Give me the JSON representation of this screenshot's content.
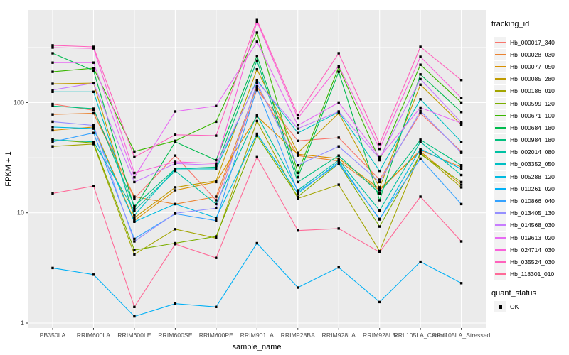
{
  "chart_data": {
    "type": "line",
    "title": "",
    "xlabel": "sample_name",
    "ylabel": "FPKM + 1",
    "y_scale": "log10",
    "y_ticks": [
      1,
      10,
      100
    ],
    "y_minor_ticks": [
      3.1623,
      31.623,
      316.23
    ],
    "ylim": [
      0.93,
      690
    ],
    "grid": true,
    "legend_position": "right",
    "legend_title": "tracking_id",
    "point_legend": {
      "title": "quant_status",
      "label": "OK",
      "marker": "black-square"
    },
    "style": {
      "panel_bg": "#EBEBEB",
      "grid_color": "#FFFFFF",
      "tick_label_color": "#4D4D4D",
      "tick_mark_color": "#333333",
      "legend_key_bg": "#F2F2F2",
      "point_color": "#000000"
    },
    "categories": [
      "PB350LA",
      "RRIM600LA",
      "RRIM600LE",
      "RRIM600SE",
      "RRIM600PE",
      "RRIM901LA",
      "RRIM928BA",
      "RRIM928LA",
      "RRIM928LB",
      "RRII105LA_Control",
      "RRII105LA_Stressed"
    ],
    "series": [
      {
        "name": "Hb_000017_340",
        "color": "#F8766D",
        "values": [
          97,
          85,
          13.5,
          33,
          13,
          130,
          45,
          48,
          20,
          80,
          36
        ]
      },
      {
        "name": "Hb_000028_030",
        "color": "#EA8331",
        "values": [
          78,
          80,
          14,
          12,
          14,
          140,
          33,
          29.5,
          16,
          37,
          26
        ]
      },
      {
        "name": "Hb_000077_050",
        "color": "#D89000",
        "values": [
          56,
          60,
          8.5,
          16,
          19,
          75,
          34,
          31,
          16.5,
          36,
          18
        ]
      },
      {
        "name": "Hb_000085_280",
        "color": "#C09B00",
        "values": [
          148,
          150,
          9,
          17,
          19.5,
          200,
          35,
          80,
          17,
          145,
          63
        ]
      },
      {
        "name": "Hb_000186_010",
        "color": "#A3A500",
        "values": [
          40,
          42,
          4.2,
          7.1,
          5.9,
          68,
          13.5,
          18,
          4.5,
          35,
          17
        ]
      },
      {
        "name": "Hb_000599_120",
        "color": "#7CAE00",
        "values": [
          46,
          43,
          4.6,
          5.3,
          6.1,
          50,
          14,
          28,
          7.5,
          34,
          19
        ]
      },
      {
        "name": "Hb_000671_100",
        "color": "#39B600",
        "values": [
          190,
          205,
          36,
          45,
          67,
          430,
          23,
          210,
          30,
          220,
          100
        ]
      },
      {
        "name": "Hb_000684_180",
        "color": "#00BB4E",
        "values": [
          280,
          195,
          11,
          44,
          30,
          265,
          21,
          190,
          13,
          180,
          82
        ]
      },
      {
        "name": "Hb_000984_180",
        "color": "#00BF7D",
        "values": [
          93,
          88,
          11.5,
          25,
          26,
          240,
          19,
          33,
          15,
          46,
          27
        ]
      },
      {
        "name": "Hb_002014_080",
        "color": "#00C1A3",
        "values": [
          46,
          44,
          10.5,
          24,
          12,
          77,
          16,
          30,
          10.5,
          44,
          22
        ]
      },
      {
        "name": "Hb_003352_050",
        "color": "#00BFC4",
        "values": [
          125,
          125,
          9.5,
          25,
          25,
          160,
          53,
          82,
          24,
          107,
          44
        ]
      },
      {
        "name": "Hb_005288_120",
        "color": "#00BAE0",
        "values": [
          60,
          58,
          8.3,
          12,
          9,
          52,
          15,
          29,
          8.7,
          38,
          25
        ]
      },
      {
        "name": "Hb_010261_020",
        "color": "#00B0F6",
        "values": [
          3.16,
          2.75,
          1.15,
          1.5,
          1.4,
          5.3,
          2.1,
          3.2,
          1.55,
          3.6,
          2.3
        ]
      },
      {
        "name": "Hb_010866_040",
        "color": "#35A2FF",
        "values": [
          44,
          53,
          5.8,
          9.8,
          8.5,
          135,
          15.5,
          28,
          8.8,
          31,
          12
        ]
      },
      {
        "name": "Hb_013405_130",
        "color": "#9590FF",
        "values": [
          67,
          62,
          5.5,
          9.9,
          11,
          150,
          27,
          40,
          19,
          84,
          35
        ]
      },
      {
        "name": "Hb_014568_030",
        "color": "#C77CFF",
        "values": [
          130,
          150,
          19,
          28,
          27,
          155,
          58,
          83,
          31,
          163,
          66
        ]
      },
      {
        "name": "Hb_019613_020",
        "color": "#E76BF3",
        "values": [
          230,
          230,
          21,
          83,
          93,
          355,
          62,
          100,
          32,
          90,
          65
        ]
      },
      {
        "name": "Hb_024714_030",
        "color": "#FA62DB",
        "values": [
          315,
          310,
          23,
          29,
          28,
          540,
          72,
          215,
          38,
          260,
          110
        ]
      },
      {
        "name": "Hb_035524_030",
        "color": "#FF62BC",
        "values": [
          330,
          320,
          32,
          51,
          50,
          560,
          77,
          280,
          42,
          320,
          160
        ]
      },
      {
        "name": "Hb_118301_010",
        "color": "#FF6A98",
        "values": [
          15,
          17.5,
          1.4,
          5.2,
          3.9,
          32,
          6.9,
          7.2,
          4.4,
          14,
          5.5
        ]
      }
    ]
  }
}
